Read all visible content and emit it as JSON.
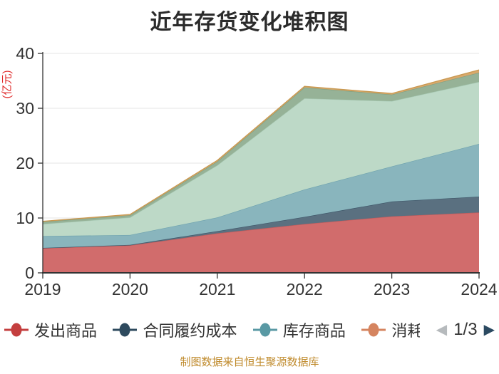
{
  "title": "近年存货变化堆积图",
  "y_axis": {
    "unit_label": "(亿元)",
    "unit_label_color": "#e02b2b",
    "ticks": [
      0,
      10,
      20,
      30,
      40
    ]
  },
  "x_axis": {
    "categories": [
      "2019",
      "2020",
      "2021",
      "2022",
      "2023",
      "2024"
    ]
  },
  "legend": {
    "items": [
      {
        "label": "发出商品",
        "color": "#c43f3f",
        "truncated": false
      },
      {
        "label": "合同履约成本",
        "color": "#2e4a5e",
        "truncated": false
      },
      {
        "label": "库存商品",
        "color": "#5999a4",
        "truncated": false
      },
      {
        "label": "消耗",
        "color": "#d5845f",
        "truncated": true
      }
    ],
    "pager": {
      "prev_icon": "◀",
      "text": "1/3",
      "next_icon": "▶",
      "prev_color": "#b6babd",
      "next_color": "#2b4a61"
    }
  },
  "footer": {
    "text": "制图数据来自恒生聚源数据库",
    "color": "#c08b2d"
  },
  "colors": {
    "axis": "#333333",
    "grid": "#e6e6e6",
    "tick_label": "#333333"
  },
  "chart_data": {
    "type": "area",
    "stacked": true,
    "title": "近年存货变化堆积图",
    "ylabel": "(亿元)",
    "xlabel": "",
    "ylim": [
      0,
      40
    ],
    "yticks": [
      0,
      10,
      20,
      30,
      40
    ],
    "grid": true,
    "legend_position": "bottom",
    "categories": [
      "2019",
      "2020",
      "2021",
      "2022",
      "2023",
      "2024"
    ],
    "series": [
      {
        "name": "发出商品",
        "color": "#d16c6c",
        "stroke": "#c05c5c",
        "values": [
          4.5,
          5.0,
          7.2,
          8.9,
          10.3,
          11.0
        ]
      },
      {
        "name": "合同履约成本",
        "color": "#5a7080",
        "stroke": "#3e5668",
        "values": [
          0.05,
          0.1,
          0.4,
          1.3,
          2.7,
          2.9
        ]
      },
      {
        "name": "库存商品",
        "color": "#89b5bd",
        "stroke": "#6fa3ae",
        "values": [
          2.15,
          1.8,
          2.5,
          5.0,
          6.4,
          9.6
        ]
      },
      {
        "name": null,
        "color": "#bdd9c7",
        "stroke": "#a9cbb6",
        "values": [
          2.2,
          3.2,
          9.5,
          16.6,
          11.9,
          11.3
        ]
      },
      {
        "name": null,
        "color": "#96b297",
        "stroke": "#7fa081",
        "values": [
          0.4,
          0.4,
          0.7,
          2.0,
          1.2,
          1.7
        ]
      },
      {
        "name": "消耗",
        "color": "#d9a96c",
        "stroke": "#c89850",
        "values": [
          0.1,
          0.15,
          0.2,
          0.2,
          0.2,
          0.5
        ]
      }
    ]
  }
}
